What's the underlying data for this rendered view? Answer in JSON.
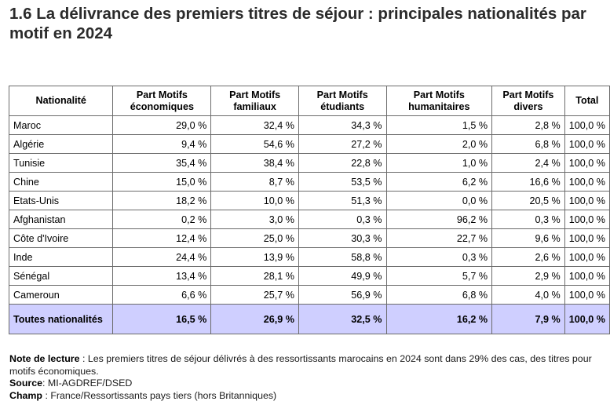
{
  "title": "1.6 La délivrance des premiers titres de séjour : principales nationalités par motif en 2024",
  "table": {
    "headers": [
      "Nationalité",
      "Part Motifs économiques",
      "Part Motifs familiaux",
      "Part Motifs étudiants",
      "Part Motifs humanitaires",
      "Part Motifs divers",
      "Total"
    ],
    "rows": [
      [
        "Maroc",
        "29,0 %",
        "32,4 %",
        "34,3 %",
        "1,5 %",
        "2,8 %",
        "100,0 %"
      ],
      [
        "Algérie",
        "9,4 %",
        "54,6 %",
        "27,2 %",
        "2,0 %",
        "6,8 %",
        "100,0 %"
      ],
      [
        "Tunisie",
        "35,4 %",
        "38,4 %",
        "22,8 %",
        "1,0 %",
        "2,4 %",
        "100,0 %"
      ],
      [
        "Chine",
        "15,0 %",
        "8,7 %",
        "53,5 %",
        "6,2 %",
        "16,6 %",
        "100,0 %"
      ],
      [
        "Etats-Unis",
        "18,2 %",
        "10,0 %",
        "51,3 %",
        "0,0 %",
        "20,5 %",
        "100,0 %"
      ],
      [
        "Afghanistan",
        "0,2 %",
        "3,0 %",
        "0,3 %",
        "96,2 %",
        "0,3 %",
        "100,0 %"
      ],
      [
        "Côte d'Ivoire",
        "12,4 %",
        "25,0 %",
        "30,3 %",
        "22,7 %",
        "9,6 %",
        "100,0 %"
      ],
      [
        "Inde",
        "24,4 %",
        "13,9 %",
        "58,8 %",
        "0,3 %",
        "2,6 %",
        "100,0 %"
      ],
      [
        "Sénégal",
        "13,4 %",
        "28,1 %",
        "49,9 %",
        "5,7 %",
        "2,9 %",
        "100,0 %"
      ],
      [
        "Cameroun",
        "6,6 %",
        "25,7 %",
        "56,9 %",
        "6,8 %",
        "4,0 %",
        "100,0 %"
      ]
    ],
    "total_row": [
      "Toutes nationalités",
      "16,5 %",
      "26,9 %",
      "32,5 %",
      "16,2 %",
      "7,9 %",
      "100,0 %"
    ],
    "total_row_color": "#cfcfff"
  },
  "notes": {
    "reading_label": "Note de lecture",
    "reading_text": " : Les premiers titres de séjour délivrés à des ressortissants marocains en 2024 sont dans 29% des cas, des titres pour motifs économiques.",
    "source_label": "Source",
    "source_text": ": MI-AGDREF/DSED",
    "scope_label": "Champ",
    "scope_text": " : France/Ressortissants pays tiers (hors Britanniques)"
  }
}
